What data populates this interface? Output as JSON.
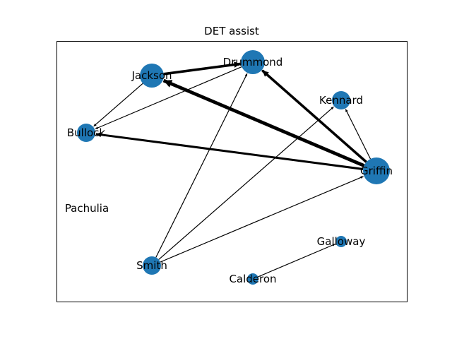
{
  "title": "DET assist",
  "colors": {
    "node_fill": "#1f77b4",
    "edge": "#000000",
    "frame": "#000000",
    "background": "#ffffff"
  },
  "chart_data": {
    "type": "network",
    "title": "DET assist",
    "directed": true,
    "nodes": [
      {
        "id": "Jackson",
        "label": "Jackson",
        "size": "large"
      },
      {
        "id": "Drummond",
        "label": "Drummond",
        "size": "large"
      },
      {
        "id": "Kennard",
        "label": "Kennard",
        "size": "medium"
      },
      {
        "id": "Bullock",
        "label": "Bullock",
        "size": "medium"
      },
      {
        "id": "Griffin",
        "label": "Griffin",
        "size": "largest"
      },
      {
        "id": "Pachulia",
        "label": "Pachulia",
        "size": "none"
      },
      {
        "id": "Galloway",
        "label": "Galloway",
        "size": "small"
      },
      {
        "id": "Smith",
        "label": "Smith",
        "size": "medium"
      },
      {
        "id": "Calderon",
        "label": "Calderon",
        "size": "small"
      }
    ],
    "edges": [
      {
        "source": "Jackson",
        "target": "Drummond",
        "weight": 3
      },
      {
        "source": "Jackson",
        "target": "Bullock",
        "weight": 1
      },
      {
        "source": "Drummond",
        "target": "Bullock",
        "weight": 1
      },
      {
        "source": "Drummond",
        "target": "Griffin",
        "weight": 1
      },
      {
        "source": "Griffin",
        "target": "Jackson",
        "weight": 4
      },
      {
        "source": "Griffin",
        "target": "Drummond",
        "weight": 3
      },
      {
        "source": "Griffin",
        "target": "Bullock",
        "weight": 2.5
      },
      {
        "source": "Griffin",
        "target": "Kennard",
        "weight": 1
      },
      {
        "source": "Smith",
        "target": "Drummond",
        "weight": 1
      },
      {
        "source": "Smith",
        "target": "Kennard",
        "weight": 1
      },
      {
        "source": "Smith",
        "target": "Griffin",
        "weight": 1
      },
      {
        "source": "Calderon",
        "target": "Galloway",
        "weight": 1
      }
    ]
  }
}
